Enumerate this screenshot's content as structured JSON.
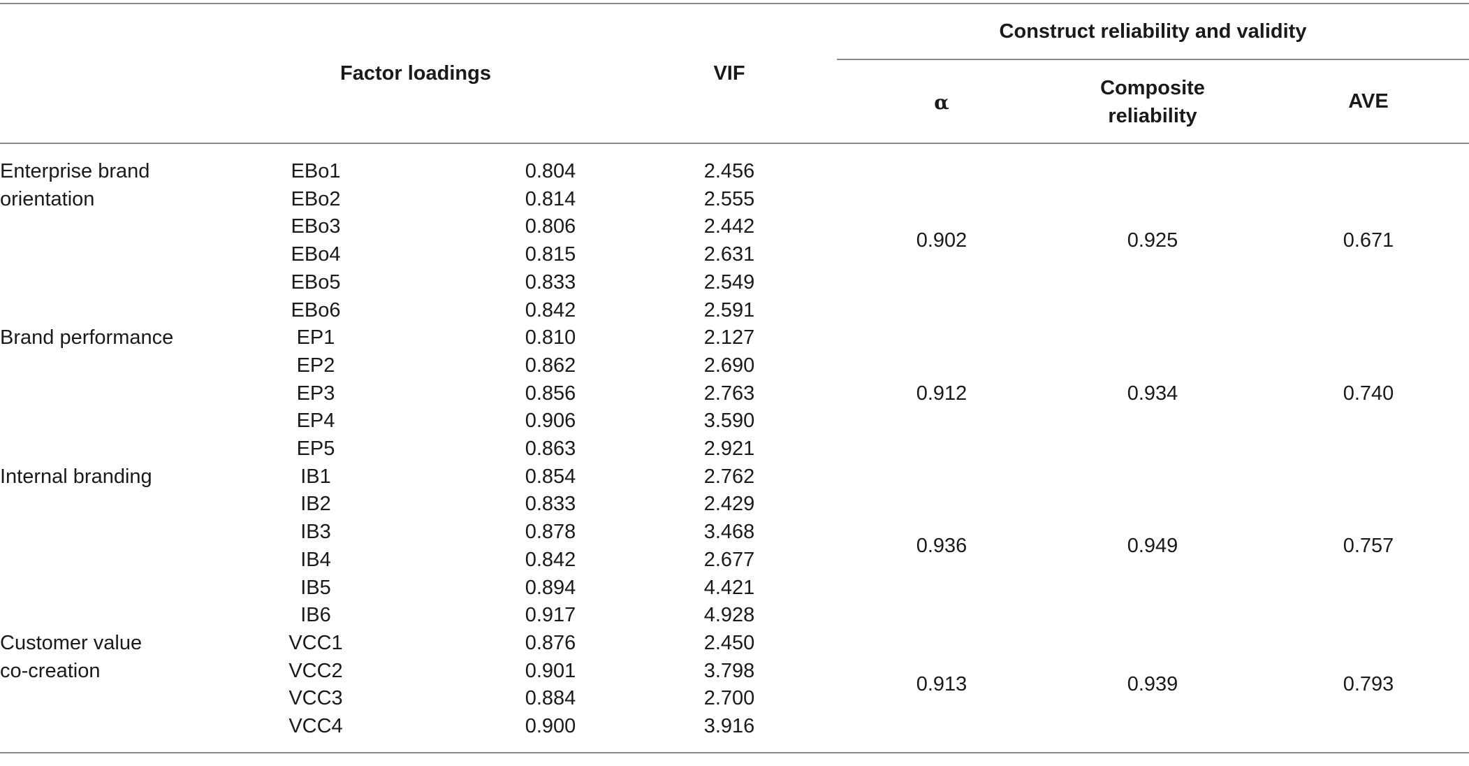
{
  "header": {
    "factor_loadings": "Factor loadings",
    "vif": "VIF",
    "construct_group": "Construct reliability and validity",
    "alpha": "α",
    "composite_line1": "Composite",
    "composite_line2": "reliability",
    "ave": "AVE"
  },
  "constructs": [
    {
      "name_line1": "Enterprise brand",
      "name_line2": "orientation",
      "alpha": "0.902",
      "composite": "0.925",
      "ave": "0.671",
      "items": [
        {
          "code": "EBo1",
          "loading": "0.804",
          "vif": "2.456"
        },
        {
          "code": "EBo2",
          "loading": "0.814",
          "vif": "2.555"
        },
        {
          "code": "EBo3",
          "loading": "0.806",
          "vif": "2.442"
        },
        {
          "code": "EBo4",
          "loading": "0.815",
          "vif": "2.631"
        },
        {
          "code": "EBo5",
          "loading": "0.833",
          "vif": "2.549"
        },
        {
          "code": "EBo6",
          "loading": "0.842",
          "vif": "2.591"
        }
      ]
    },
    {
      "name_line1": "Brand performance",
      "name_line2": "",
      "alpha": "0.912",
      "composite": "0.934",
      "ave": "0.740",
      "items": [
        {
          "code": "EP1",
          "loading": "0.810",
          "vif": "2.127"
        },
        {
          "code": "EP2",
          "loading": "0.862",
          "vif": "2.690"
        },
        {
          "code": "EP3",
          "loading": "0.856",
          "vif": "2.763"
        },
        {
          "code": "EP4",
          "loading": "0.906",
          "vif": "3.590"
        },
        {
          "code": "EP5",
          "loading": "0.863",
          "vif": "2.921"
        }
      ]
    },
    {
      "name_line1": "Internal branding",
      "name_line2": "",
      "alpha": "0.936",
      "composite": "0.949",
      "ave": "0.757",
      "items": [
        {
          "code": "IB1",
          "loading": "0.854",
          "vif": "2.762"
        },
        {
          "code": "IB2",
          "loading": "0.833",
          "vif": "2.429"
        },
        {
          "code": "IB3",
          "loading": "0.878",
          "vif": "3.468"
        },
        {
          "code": "IB4",
          "loading": "0.842",
          "vif": "2.677"
        },
        {
          "code": "IB5",
          "loading": "0.894",
          "vif": "4.421"
        },
        {
          "code": "IB6",
          "loading": "0.917",
          "vif": "4.928"
        }
      ]
    },
    {
      "name_line1": "Customer value",
      "name_line2": "co-creation",
      "alpha": "0.913",
      "composite": "0.939",
      "ave": "0.793",
      "items": [
        {
          "code": "VCC1",
          "loading": "0.876",
          "vif": "2.450"
        },
        {
          "code": "VCC2",
          "loading": "0.901",
          "vif": "3.798"
        },
        {
          "code": "VCC3",
          "loading": "0.884",
          "vif": "2.700"
        },
        {
          "code": "VCC4",
          "loading": "0.900",
          "vif": "3.916"
        }
      ]
    }
  ]
}
